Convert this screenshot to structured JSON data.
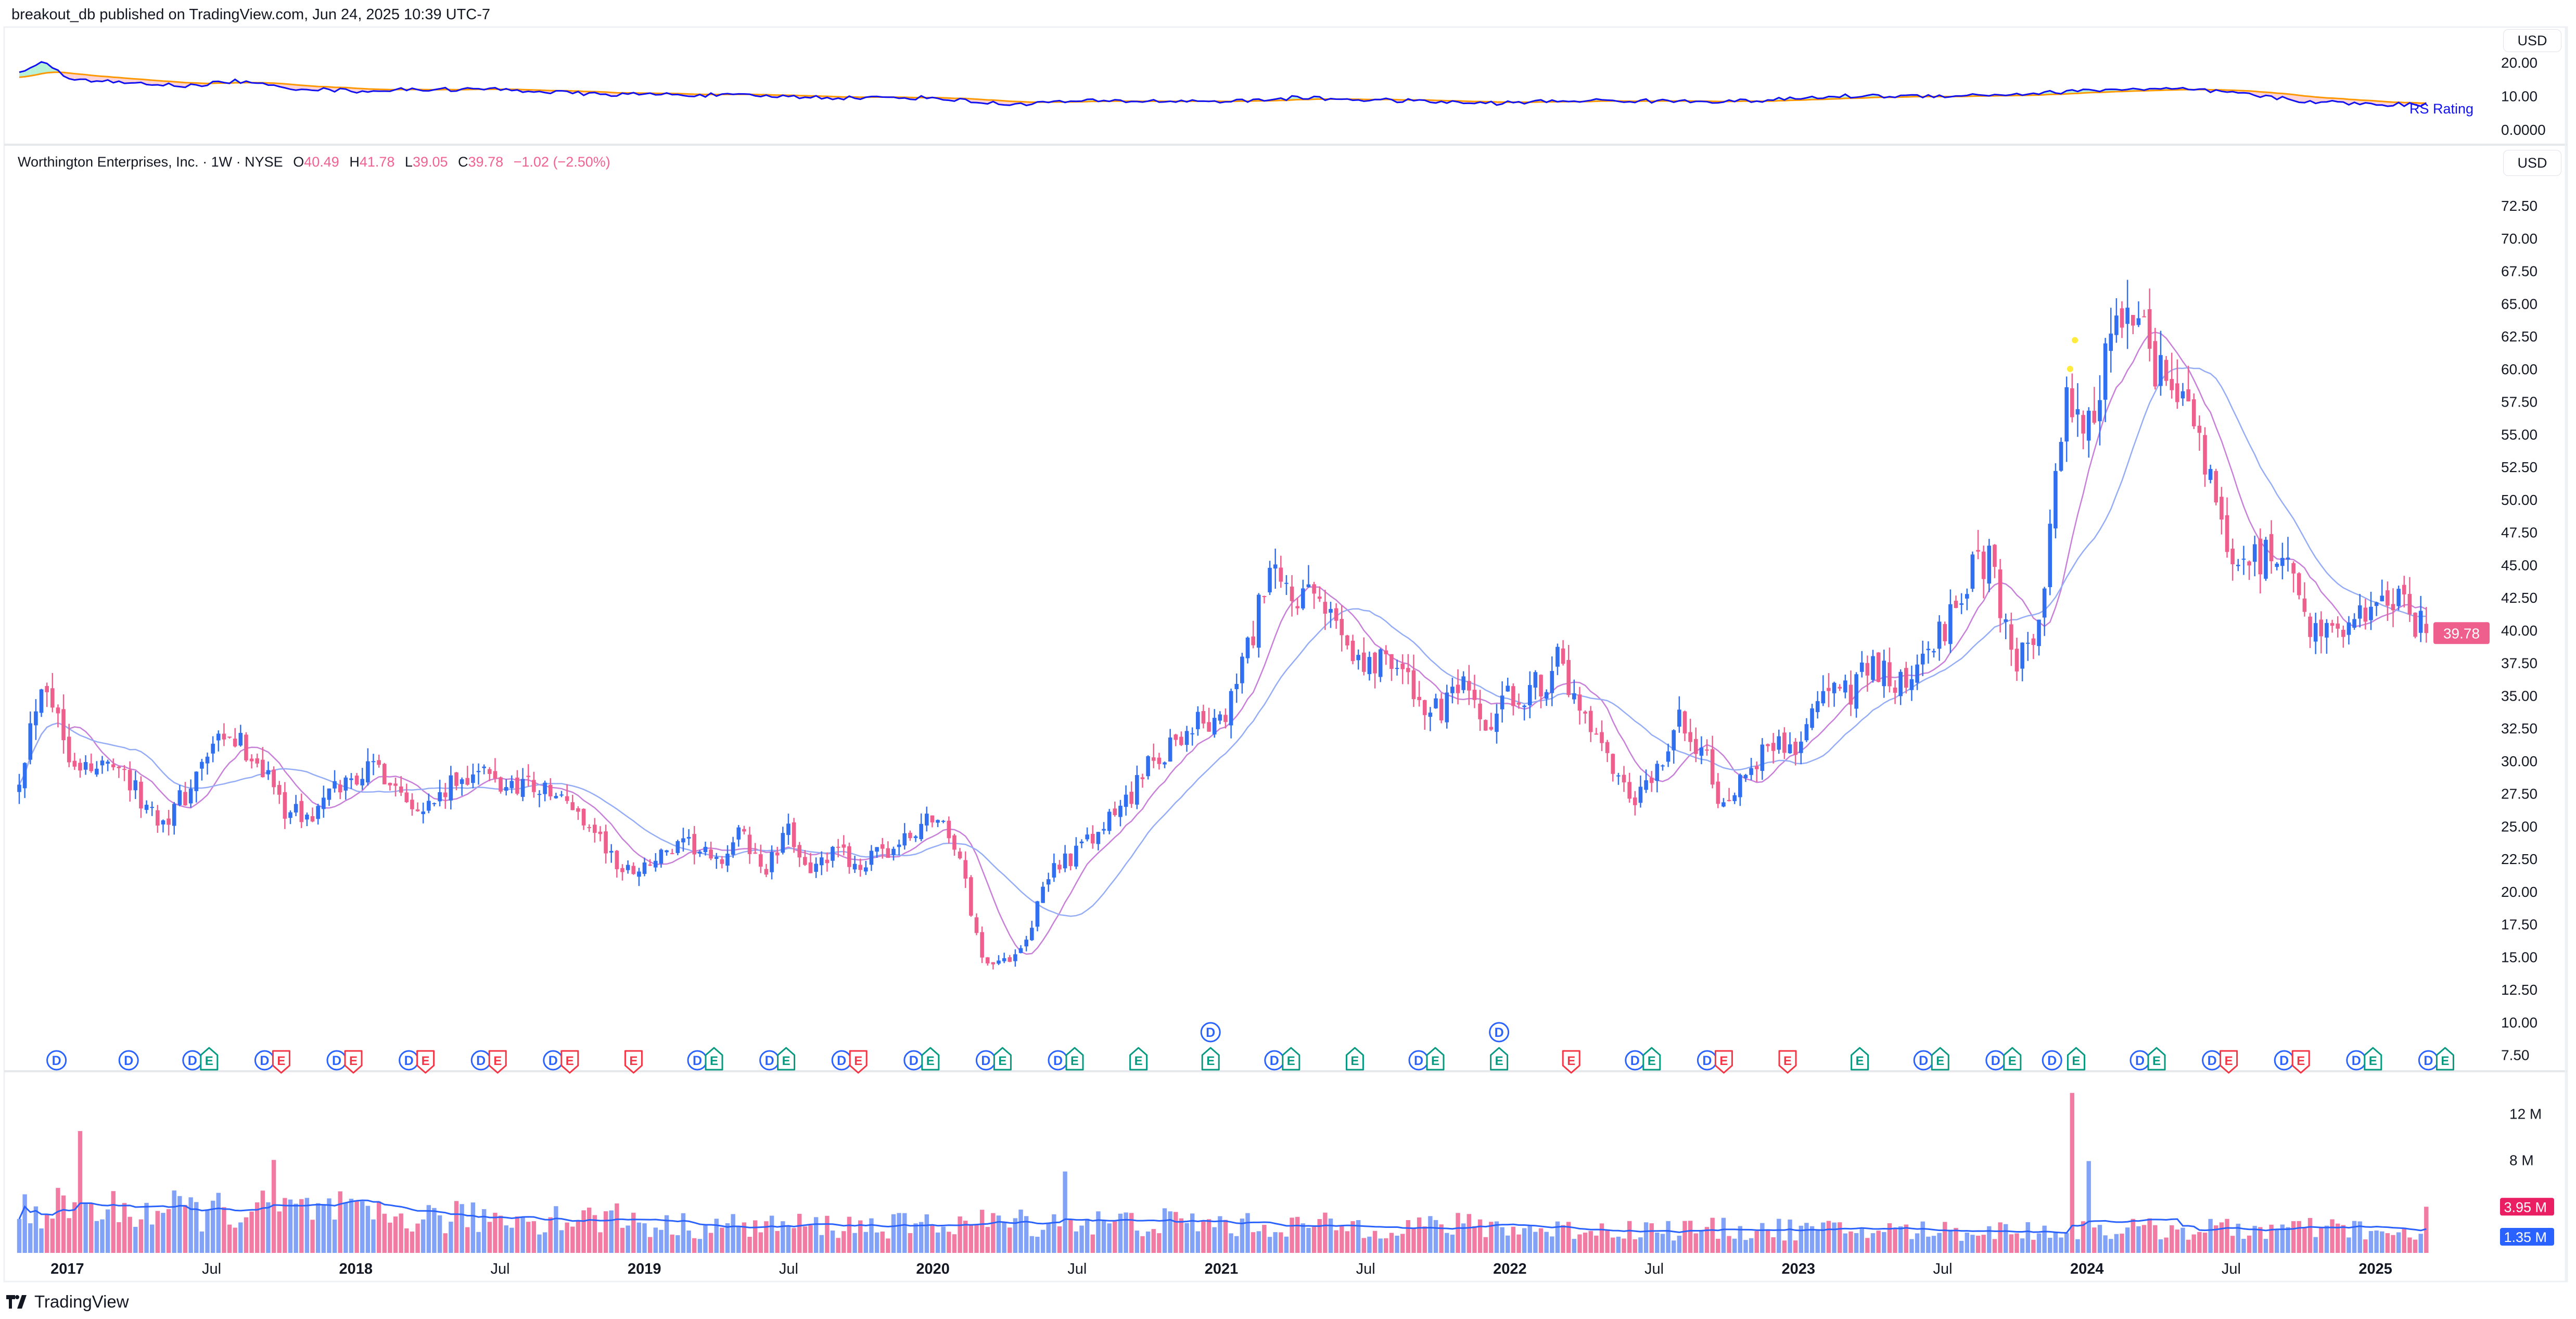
{
  "header": {
    "published": "breakout_db published on TradingView.com, Jun 24, 2025 10:39 UTC-7"
  },
  "legend": {
    "symbol": "Worthington Enterprises, Inc. · 1W · NYSE",
    "o_label": "O",
    "o": "40.49",
    "h_label": "H",
    "h": "41.78",
    "l_label": "L",
    "l": "39.05",
    "c_label": "C",
    "c": "39.78",
    "change": "−1.02 (−2.50%)"
  },
  "currency": {
    "rs_pane": "USD",
    "price_pane": "USD"
  },
  "rs_pane": {
    "label": "RS Rating",
    "ticks": [
      {
        "label": "20.00",
        "value": 20
      },
      {
        "label": "10.00",
        "value": 10
      },
      {
        "label": "0.0000",
        "value": 0
      }
    ]
  },
  "price_axis": {
    "ticks": [
      "72.50",
      "70.00",
      "67.50",
      "65.00",
      "62.50",
      "60.00",
      "57.50",
      "55.00",
      "52.50",
      "50.00",
      "47.50",
      "45.00",
      "42.50",
      "40.00",
      "37.50",
      "35.00",
      "32.50",
      "30.00",
      "27.50",
      "25.00",
      "22.50",
      "20.00",
      "17.50",
      "15.00",
      "12.50",
      "10.00",
      "7.50"
    ],
    "last_price": "39.78"
  },
  "volume_axis": {
    "ticks": [
      {
        "label": "12 M",
        "value": 12
      },
      {
        "label": "8 M",
        "value": 8
      }
    ],
    "last_volume": "3.95 M",
    "volume_ma": "1.35 M"
  },
  "time_axis": [
    {
      "label": "2017",
      "date": "2017-01",
      "bold": true
    },
    {
      "label": "Jul",
      "date": "2017-07",
      "bold": false
    },
    {
      "label": "2018",
      "date": "2018-01",
      "bold": true
    },
    {
      "label": "Jul",
      "date": "2018-07",
      "bold": false
    },
    {
      "label": "2019",
      "date": "2019-01",
      "bold": true
    },
    {
      "label": "Jul",
      "date": "2019-07",
      "bold": false
    },
    {
      "label": "2020",
      "date": "2020-01",
      "bold": true
    },
    {
      "label": "Jul",
      "date": "2020-07",
      "bold": false
    },
    {
      "label": "2021",
      "date": "2021-01",
      "bold": true
    },
    {
      "label": "Jul",
      "date": "2021-07",
      "bold": false
    },
    {
      "label": "2022",
      "date": "2022-01",
      "bold": true
    },
    {
      "label": "Jul",
      "date": "2022-07",
      "bold": false
    },
    {
      "label": "2023",
      "date": "2023-01",
      "bold": true
    },
    {
      "label": "Jul",
      "date": "2023-07",
      "bold": false
    },
    {
      "label": "2024",
      "date": "2024-01",
      "bold": true
    },
    {
      "label": "Jul",
      "date": "2024-07",
      "bold": false
    },
    {
      "label": "2025",
      "date": "2025-01",
      "bold": true
    }
  ],
  "footer": {
    "brand": "TradingView"
  },
  "colors": {
    "up": "#2f6ff0",
    "down": "#ef5f8e",
    "volume_up": "#82a2f8",
    "volume_down": "#f27ba3",
    "ma_fast": "#c77fd8",
    "ma_slow": "#94acf6",
    "volume_ma": "#2962ff",
    "rs_line": "#1010f0",
    "rs_ma": "#ff9800",
    "rs_fill_up": "#b8f2d6",
    "rs_fill_down": "#fcd3d8",
    "last_price_tag": "#ef5f8e",
    "last_volume_tag": "#e91e63",
    "volume_ma_tag": "#2962ff",
    "dividend": "#2962ff",
    "earnings_beat": "#089981",
    "earnings_miss": "#f23645",
    "signal_dot": "#ffeb3b"
  },
  "chart_data": {
    "type": "candlestick",
    "interval": "1W",
    "first_month": "2016-11",
    "monthly_close": [
      29,
      37,
      31,
      29,
      30.5,
      27,
      25.5,
      27.5,
      31,
      31.5,
      30,
      26.5,
      25.5,
      27.5,
      29,
      29.5,
      27.5,
      26.5,
      28,
      29.5,
      28,
      28.5,
      27.5,
      26.5,
      24.5,
      21.5,
      22,
      23,
      23.5,
      22,
      24.5,
      21.5,
      24.5,
      21.5,
      23,
      22,
      23,
      24,
      26,
      23.5,
      15,
      14.5,
      17,
      22,
      23,
      24.5,
      27,
      29.5,
      31.5,
      33,
      32.5,
      38,
      44,
      42.5,
      42,
      40.5,
      37,
      38.5,
      35,
      33.5,
      35.5,
      32,
      35,
      35.5,
      37.5,
      33,
      30,
      26.5,
      28.5,
      33,
      31,
      25.5,
      30,
      31.5,
      31,
      35.5,
      35,
      38,
      35.5,
      37,
      40,
      44,
      45.5,
      37.5,
      39.5,
      57,
      55,
      62.5,
      63.5,
      59.5,
      58.5,
      52,
      45,
      45.5,
      46,
      41,
      40,
      40.5,
      41.5,
      42.5,
      39.78
    ],
    "last_bar": {
      "open": 40.49,
      "high": 41.78,
      "low": 39.05,
      "close": 39.78,
      "volume": 3.95
    },
    "ylim": [
      7.5,
      72.5
    ],
    "volume_level_by_year": {
      "2016": 3.8,
      "2017": 3.6,
      "2018": 3.0,
      "2019": 2.3,
      "2020": 2.6,
      "2021": 2.3,
      "2022": 2.0,
      "2023": 1.9,
      "2024": 2.0,
      "2025": 1.5
    },
    "volume_spikes": [
      {
        "date": "2017-01",
        "value": 10.5
      },
      {
        "date": "2017-09",
        "value": 8.0
      },
      {
        "date": "2020-06",
        "value": 7.0
      },
      {
        "date": "2023-12",
        "value": 13.8
      },
      {
        "date": "2024-01",
        "value": 7.9
      }
    ],
    "rs_rating": {
      "dates": [
        "2016-11",
        "2016-12",
        "2017-01",
        "2017-03",
        "2017-06",
        "2017-08",
        "2017-10",
        "2018-01",
        "2018-04",
        "2018-07",
        "2018-11",
        "2019-02",
        "2019-06",
        "2019-09",
        "2020-01",
        "2020-04",
        "2020-07",
        "2020-11",
        "2021-02",
        "2021-04",
        "2021-09",
        "2021-12",
        "2022-04",
        "2022-07",
        "2022-11",
        "2023-03",
        "2023-06",
        "2023-10",
        "2024-02",
        "2024-05",
        "2024-07",
        "2024-10",
        "2025-01",
        "2025-03"
      ],
      "values": [
        17,
        20,
        15.5,
        14,
        13,
        14.5,
        12.5,
        11.5,
        12,
        12,
        10.5,
        10.5,
        10,
        9.5,
        9.5,
        7.5,
        8.5,
        8.5,
        8.5,
        9.5,
        8.5,
        7.8,
        8.7,
        8.5,
        8.5,
        10,
        10,
        10.5,
        12,
        12,
        11,
        8.5,
        7.5,
        7.5
      ]
    },
    "signal_dots": [
      {
        "date": "2023-12",
        "price": 60.0
      },
      {
        "date": "2023-12",
        "price": 62.2
      }
    ],
    "events": [
      {
        "date": "2016-12",
        "dividend": true,
        "earnings": null,
        "raised": false
      },
      {
        "date": "2017-03",
        "dividend": true,
        "earnings": null,
        "raised": false
      },
      {
        "date": "2017-06",
        "dividend": true,
        "earnings": "beat",
        "raised": false
      },
      {
        "date": "2017-09",
        "dividend": true,
        "earnings": "miss",
        "raised": false
      },
      {
        "date": "2017-12",
        "dividend": true,
        "earnings": "miss",
        "raised": false
      },
      {
        "date": "2018-03",
        "dividend": true,
        "earnings": "miss",
        "raised": false
      },
      {
        "date": "2018-06",
        "dividend": true,
        "earnings": "miss",
        "raised": false
      },
      {
        "date": "2018-09",
        "dividend": true,
        "earnings": "miss",
        "raised": false
      },
      {
        "date": "2018-12",
        "dividend": false,
        "earnings": "miss",
        "raised": false
      },
      {
        "date": "2019-03",
        "dividend": true,
        "earnings": "beat",
        "raised": false
      },
      {
        "date": "2019-06",
        "dividend": true,
        "earnings": "beat",
        "raised": false
      },
      {
        "date": "2019-09",
        "dividend": true,
        "earnings": "miss",
        "raised": false
      },
      {
        "date": "2019-12",
        "dividend": true,
        "earnings": "beat",
        "raised": false
      },
      {
        "date": "2020-03",
        "dividend": true,
        "earnings": "beat",
        "raised": false
      },
      {
        "date": "2020-06",
        "dividend": true,
        "earnings": "beat",
        "raised": false
      },
      {
        "date": "2020-09",
        "dividend": false,
        "earnings": "beat",
        "raised": false
      },
      {
        "date": "2020-12",
        "dividend": true,
        "earnings": "beat",
        "raised": true
      },
      {
        "date": "2021-03",
        "dividend": true,
        "earnings": "beat",
        "raised": false
      },
      {
        "date": "2021-06",
        "dividend": false,
        "earnings": "beat",
        "raised": false
      },
      {
        "date": "2021-09",
        "dividend": true,
        "earnings": "beat",
        "raised": false
      },
      {
        "date": "2021-12",
        "dividend": true,
        "earnings": "beat",
        "raised": true
      },
      {
        "date": "2022-03",
        "dividend": false,
        "earnings": "miss",
        "raised": false
      },
      {
        "date": "2022-06",
        "dividend": true,
        "earnings": "beat",
        "raised": false
      },
      {
        "date": "2022-09",
        "dividend": true,
        "earnings": "miss",
        "raised": false
      },
      {
        "date": "2022-12",
        "dividend": false,
        "earnings": "miss",
        "raised": false
      },
      {
        "date": "2023-03",
        "dividend": false,
        "earnings": "beat",
        "raised": false
      },
      {
        "date": "2023-06",
        "dividend": true,
        "earnings": "beat",
        "raised": false
      },
      {
        "date": "2023-09",
        "dividend": true,
        "earnings": "beat",
        "raised": false
      },
      {
        "date": "2023-11",
        "dividend": true,
        "earnings": null,
        "raised": false
      },
      {
        "date": "2023-12",
        "dividend": false,
        "earnings": "beat",
        "raised": false
      },
      {
        "date": "2024-03",
        "dividend": true,
        "earnings": "beat",
        "raised": false
      },
      {
        "date": "2024-06",
        "dividend": true,
        "earnings": "miss",
        "raised": false
      },
      {
        "date": "2024-09",
        "dividend": true,
        "earnings": "miss",
        "raised": false
      },
      {
        "date": "2024-12",
        "dividend": true,
        "earnings": "beat",
        "raised": false
      },
      {
        "date": "2025-03",
        "dividend": true,
        "earnings": "beat",
        "raised": false
      }
    ],
    "event_letters": {
      "dividend": "D",
      "earnings": "E"
    }
  }
}
